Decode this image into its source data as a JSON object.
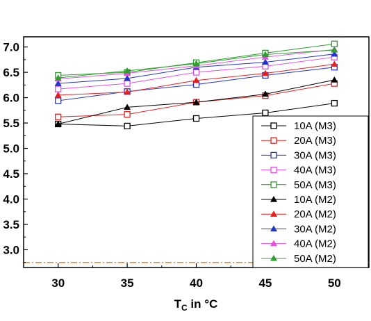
{
  "chart_data": {
    "type": "line",
    "x": [
      30,
      35,
      40,
      45,
      50
    ],
    "xlabel": {
      "main": "T",
      "sub": "C",
      "rest": " in °C"
    },
    "xlim": [
      27.5,
      52.5
    ],
    "ylim": [
      2.65,
      7.2
    ],
    "x_ticks": [
      "30",
      "35",
      "40",
      "45",
      "50"
    ],
    "y_ticks": [
      {
        "value": 3.0,
        "label": "3.0"
      },
      {
        "value": 3.5,
        "label": "3.5"
      },
      {
        "value": 4.0,
        "label": "4.0"
      },
      {
        "value": 4.5,
        "label": "4.5"
      },
      {
        "value": 5.0,
        "label": "5.0"
      },
      {
        "value": 5.5,
        "label": "5.5"
      },
      {
        "value": 6.0,
        "label": "6.0"
      },
      {
        "value": 6.5,
        "label": "6.5"
      },
      {
        "value": 7.0,
        "label": "7.0"
      }
    ],
    "reference_line": {
      "y": 2.75,
      "style": "dash-dot",
      "color": "#f58220"
    },
    "grid": false,
    "legend_position": "bottom-right",
    "series": [
      {
        "name": "10A (M3)",
        "color": "#000000",
        "marker": "open-square",
        "values": [
          5.48,
          5.44,
          5.59,
          5.7,
          5.89
        ]
      },
      {
        "name": "20A (M3)",
        "color": "#e8201e",
        "marker": "open-square",
        "values": [
          5.62,
          5.67,
          5.91,
          6.04,
          6.28
        ]
      },
      {
        "name": "30A (M3)",
        "color": "#2233cc",
        "marker": "open-square",
        "values": [
          5.94,
          6.12,
          6.26,
          6.44,
          6.6
        ]
      },
      {
        "name": "40A (M3)",
        "color": "#e64ee6",
        "marker": "open-square",
        "values": [
          6.17,
          6.28,
          6.5,
          6.62,
          6.8
        ]
      },
      {
        "name": "50A (M3)",
        "color": "#2e9e2e",
        "marker": "open-square",
        "values": [
          6.44,
          6.5,
          6.69,
          6.88,
          7.06
        ]
      },
      {
        "name": "10A (M2)",
        "color": "#000000",
        "marker": "filled-triangle",
        "values": [
          5.48,
          5.81,
          5.91,
          6.07,
          6.35
        ]
      },
      {
        "name": "20A (M2)",
        "color": "#e8201e",
        "marker": "filled-triangle",
        "values": [
          6.05,
          6.11,
          6.34,
          6.48,
          6.66
        ]
      },
      {
        "name": "30A (M2)",
        "color": "#2233cc",
        "marker": "filled-triangle",
        "values": [
          6.28,
          6.38,
          6.6,
          6.7,
          6.86
        ]
      },
      {
        "name": "40A (M2)",
        "color": "#e64ee6",
        "marker": "filled-triangle",
        "values": [
          6.37,
          6.48,
          6.63,
          6.8,
          6.95
        ]
      },
      {
        "name": "50A (M2)",
        "color": "#2e9e2e",
        "marker": "filled-triangle",
        "values": [
          6.39,
          6.53,
          6.67,
          6.85,
          6.94
        ]
      }
    ]
  }
}
